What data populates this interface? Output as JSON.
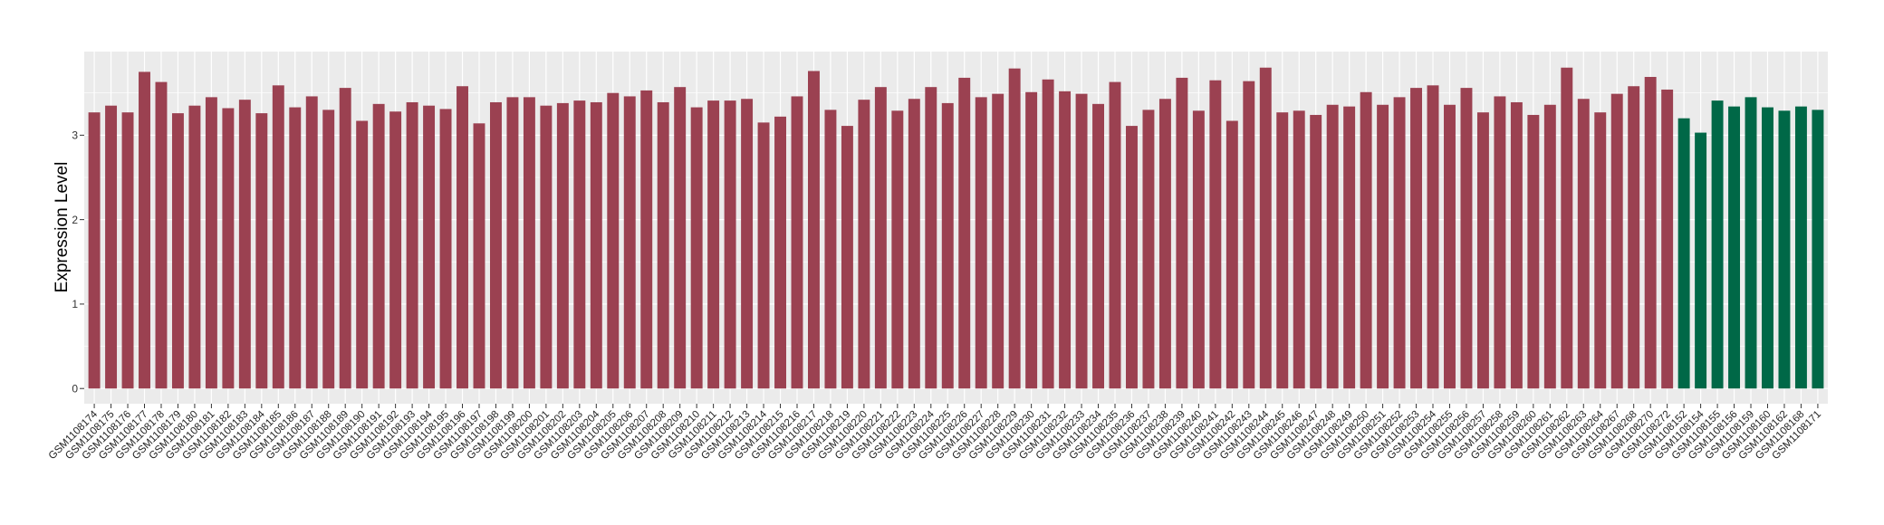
{
  "chart_data": {
    "type": "bar",
    "title": "",
    "xlabel": "",
    "ylabel": "Expression Level",
    "ylim": [
      -0.18,
      3.99
    ],
    "yticks": [
      0,
      1,
      2,
      3
    ],
    "grid": true,
    "legend": "none",
    "panel_background": "#EBEBEB",
    "groups": [
      {
        "color": "#9B4151",
        "count": 95
      },
      {
        "color": "#006847",
        "count": 9
      }
    ],
    "categories": [
      "GSM1108174",
      "GSM1108175",
      "GSM1108176",
      "GSM1108177",
      "GSM1108178",
      "GSM1108179",
      "GSM1108180",
      "GSM1108181",
      "GSM1108182",
      "GSM1108183",
      "GSM1108184",
      "GSM1108185",
      "GSM1108186",
      "GSM1108187",
      "GSM1108188",
      "GSM1108189",
      "GSM1108190",
      "GSM1108191",
      "GSM1108192",
      "GSM1108193",
      "GSM1108194",
      "GSM1108195",
      "GSM1108196",
      "GSM1108197",
      "GSM1108198",
      "GSM1108199",
      "GSM1108200",
      "GSM1108201",
      "GSM1108202",
      "GSM1108203",
      "GSM1108204",
      "GSM1108205",
      "GSM1108206",
      "GSM1108207",
      "GSM1108208",
      "GSM1108209",
      "GSM1108210",
      "GSM1108211",
      "GSM1108212",
      "GSM1108213",
      "GSM1108214",
      "GSM1108215",
      "GSM1108216",
      "GSM1108217",
      "GSM1108218",
      "GSM1108219",
      "GSM1108220",
      "GSM1108221",
      "GSM1108222",
      "GSM1108223",
      "GSM1108224",
      "GSM1108225",
      "GSM1108226",
      "GSM1108227",
      "GSM1108228",
      "GSM1108229",
      "GSM1108230",
      "GSM1108231",
      "GSM1108232",
      "GSM1108233",
      "GSM1108234",
      "GSM1108235",
      "GSM1108236",
      "GSM1108237",
      "GSM1108238",
      "GSM1108239",
      "GSM1108240",
      "GSM1108241",
      "GSM1108242",
      "GSM1108243",
      "GSM1108244",
      "GSM1108245",
      "GSM1108246",
      "GSM1108247",
      "GSM1108248",
      "GSM1108249",
      "GSM1108250",
      "GSM1108251",
      "GSM1108252",
      "GSM1108253",
      "GSM1108254",
      "GSM1108255",
      "GSM1108256",
      "GSM1108257",
      "GSM1108258",
      "GSM1108259",
      "GSM1108260",
      "GSM1108261",
      "GSM1108262",
      "GSM1108263",
      "GSM1108264",
      "GSM1108267",
      "GSM1108268",
      "GSM1108270",
      "GSM1108272",
      "GSM1108152",
      "GSM1108154",
      "GSM1108155",
      "GSM1108156",
      "GSM1108159",
      "GSM1108160",
      "GSM1108162",
      "GSM1108168",
      "GSM1108171"
    ],
    "values": [
      3.27,
      3.35,
      3.27,
      3.75,
      3.63,
      3.26,
      3.35,
      3.45,
      3.32,
      3.42,
      3.26,
      3.59,
      3.33,
      3.46,
      3.3,
      3.56,
      3.17,
      3.37,
      3.28,
      3.39,
      3.35,
      3.31,
      3.58,
      3.14,
      3.39,
      3.45,
      3.45,
      3.35,
      3.38,
      3.41,
      3.39,
      3.5,
      3.46,
      3.53,
      3.39,
      3.57,
      3.33,
      3.41,
      3.41,
      3.43,
      3.15,
      3.22,
      3.46,
      3.76,
      3.3,
      3.11,
      3.42,
      3.57,
      3.29,
      3.43,
      3.57,
      3.38,
      3.68,
      3.45,
      3.49,
      3.79,
      3.51,
      3.66,
      3.52,
      3.49,
      3.37,
      3.63,
      3.11,
      3.3,
      3.43,
      3.68,
      3.29,
      3.65,
      3.17,
      3.64,
      3.8,
      3.27,
      3.29,
      3.24,
      3.36,
      3.34,
      3.51,
      3.36,
      3.45,
      3.56,
      3.59,
      3.36,
      3.56,
      3.27,
      3.46,
      3.39,
      3.24,
      3.36,
      3.8,
      3.43,
      3.27,
      3.49,
      3.58,
      3.69,
      3.54,
      3.2,
      3.03,
      3.41,
      3.34,
      3.45,
      3.33,
      3.29,
      3.34,
      3.3
    ]
  }
}
